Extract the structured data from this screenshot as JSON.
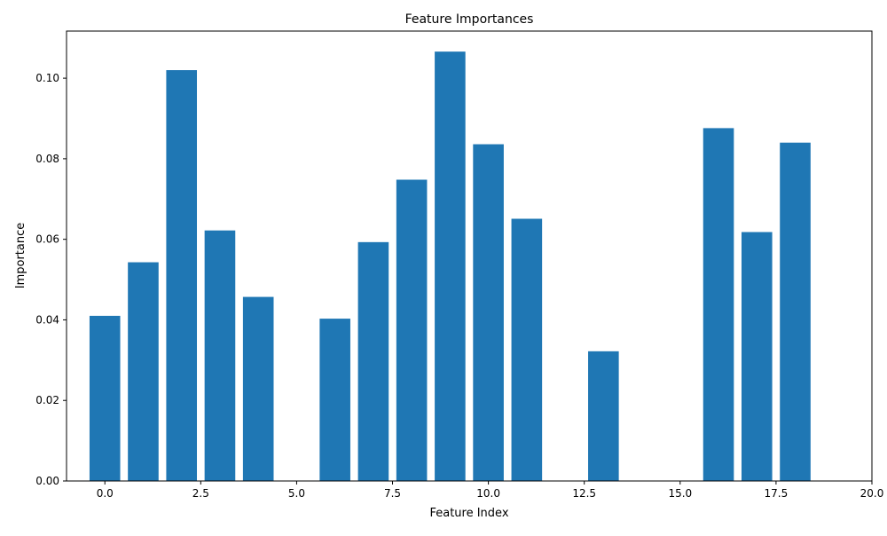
{
  "chart_data": {
    "type": "bar",
    "title": "Feature Importances",
    "xlabel": "Feature Index",
    "ylabel": "Importance",
    "bar_color": "#1f77b4",
    "xlim": [
      -1.0,
      20.0
    ],
    "ylim": [
      0.0,
      0.1117
    ],
    "x_ticks": [
      {
        "value": 0.0,
        "label": "0.0"
      },
      {
        "value": 2.5,
        "label": "2.5"
      },
      {
        "value": 5.0,
        "label": "5.0"
      },
      {
        "value": 7.5,
        "label": "7.5"
      },
      {
        "value": 10.0,
        "label": "10.0"
      },
      {
        "value": 12.5,
        "label": "12.5"
      },
      {
        "value": 15.0,
        "label": "15.0"
      },
      {
        "value": 17.5,
        "label": "17.5"
      },
      {
        "value": 20.0,
        "label": "20.0"
      }
    ],
    "y_ticks": [
      {
        "value": 0.0,
        "label": "0.00"
      },
      {
        "value": 0.02,
        "label": "0.02"
      },
      {
        "value": 0.04,
        "label": "0.04"
      },
      {
        "value": 0.06,
        "label": "0.06"
      },
      {
        "value": 0.08,
        "label": "0.08"
      },
      {
        "value": 0.1,
        "label": "0.10"
      }
    ],
    "x": [
      0,
      1,
      2,
      3,
      4,
      5,
      6,
      7,
      8,
      9,
      10,
      11,
      12,
      13,
      14,
      15,
      16,
      17,
      18,
      19
    ],
    "values": [
      0.041,
      0.0543,
      0.102,
      0.0622,
      0.0457,
      0.0,
      0.0403,
      0.0593,
      0.0748,
      0.1066,
      0.0836,
      0.0651,
      0.0,
      0.0322,
      0.0,
      0.0,
      0.0876,
      0.0618,
      0.084,
      0.0
    ],
    "grid": false,
    "legend": "none"
  }
}
